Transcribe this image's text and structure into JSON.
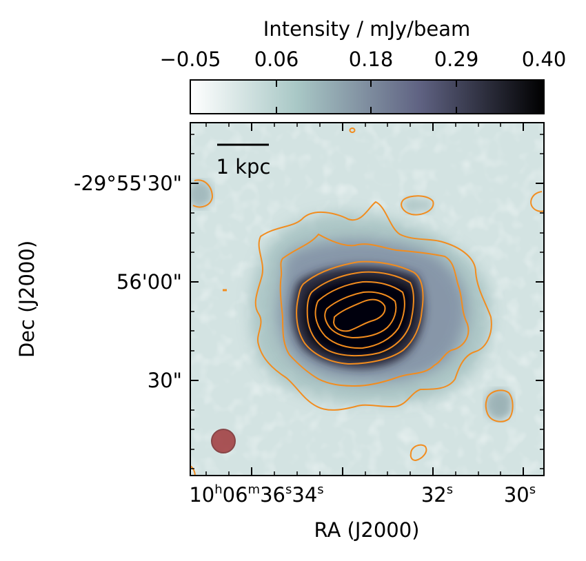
{
  "chart_data": {
    "type": "heatmap",
    "colorbar": {
      "label": "Intensity / mJy/beam",
      "ticks": [
        "−0.05",
        "0.06",
        "0.18",
        "0.29",
        "0.40"
      ],
      "range": [
        -0.05,
        0.4
      ],
      "colormap": [
        "#ffffff",
        "#a9c8c6",
        "#5f6282",
        "#000000"
      ]
    },
    "scale_bar_label": "1 kpc",
    "dec_axis": {
      "label": "Dec (J2000)",
      "ticks": [
        "-29°55'30\"",
        "56'00\"",
        "30\""
      ]
    },
    "ra_axis": {
      "label": "RA (J2000)",
      "ticks": [
        {
          "h": "10",
          "m": "06",
          "s": "36",
          "s2": "34"
        },
        {
          "s": "32"
        },
        {
          "s": "30"
        }
      ],
      "unit_h": "h",
      "unit_m": "m",
      "unit_s": "s"
    },
    "contour_color": "#f28c1e",
    "beam_color": "#a0393c",
    "contour_levels": 7,
    "source_peak_mJy_per_beam": 0.4
  }
}
